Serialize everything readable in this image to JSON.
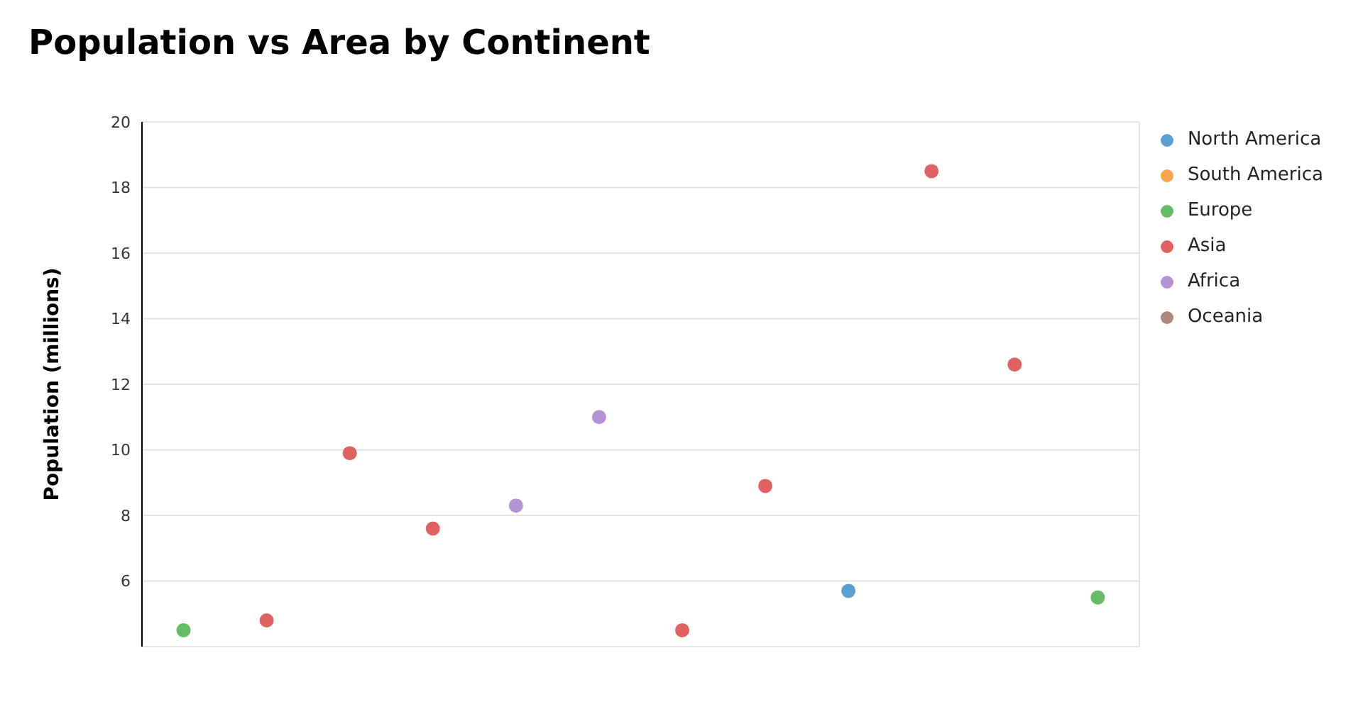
{
  "chart_data": {
    "type": "scatter",
    "title": "Population vs Area by Continent",
    "ylabel": "Population (millions)",
    "categories": [
      null,
      null,
      null,
      null,
      null,
      null,
      null,
      null,
      null,
      null,
      null,
      null
    ],
    "ylim": [
      4,
      20
    ],
    "yticks": [
      6,
      8,
      10,
      12,
      14,
      16,
      18,
      20
    ],
    "tick_labels": "y",
    "grid": true,
    "legend": "top right",
    "marker": "circle",
    "series": [
      {
        "name": "North America",
        "color": "#5b9fcf",
        "values": [
          null,
          null,
          null,
          null,
          null,
          null,
          null,
          null,
          5.7,
          null,
          null,
          null
        ]
      },
      {
        "name": "South America",
        "color": "#fba451",
        "values": [
          null,
          null,
          null,
          null,
          null,
          null,
          null,
          null,
          null,
          null,
          null,
          null
        ]
      },
      {
        "name": "Europe",
        "color": "#66bb66",
        "values": [
          4.5,
          null,
          null,
          null,
          null,
          null,
          null,
          null,
          null,
          null,
          null,
          5.5
        ]
      },
      {
        "name": "Asia",
        "color": "#e06363",
        "values": [
          null,
          4.8,
          9.9,
          7.6,
          null,
          null,
          4.5,
          8.9,
          null,
          18.5,
          12.6,
          null
        ]
      },
      {
        "name": "Africa",
        "color": "#b393d3",
        "values": [
          null,
          null,
          null,
          null,
          8.3,
          11.0,
          null,
          null,
          null,
          null,
          null,
          null
        ]
      },
      {
        "name": "Oceania",
        "color": "#b08880",
        "values": [
          null,
          null,
          null,
          null,
          null,
          null,
          null,
          null,
          null,
          null,
          null,
          null
        ]
      }
    ]
  }
}
